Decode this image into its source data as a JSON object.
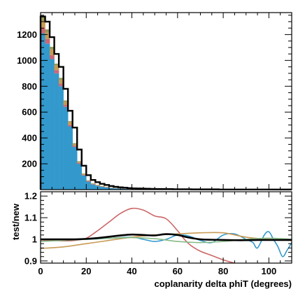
{
  "chart_data": [
    {
      "type": "bar",
      "subtype": "stacked-histogram",
      "title": "",
      "xlabel": "",
      "ylabel": "",
      "xlim": [
        0,
        110
      ],
      "ylim": [
        0,
        1370
      ],
      "x_ticks": [
        0,
        20,
        40,
        60,
        80,
        100
      ],
      "y_ticks": [
        200,
        400,
        600,
        800,
        1000,
        1200
      ],
      "y_tick_labels": [
        "200",
        "400",
        "600",
        "800",
        "1000",
        "1200"
      ],
      "bin_edges": [
        0,
        2,
        4,
        6,
        8,
        10,
        12,
        14,
        16,
        18,
        20,
        22,
        24,
        26,
        28,
        30,
        32,
        34,
        36,
        38,
        40,
        42,
        44,
        46,
        48,
        50,
        52,
        54,
        56,
        58,
        60,
        62,
        64,
        66,
        68,
        70,
        72,
        74,
        76,
        78,
        80,
        82,
        84,
        86,
        88,
        90,
        92,
        94,
        96,
        98,
        100,
        102,
        104,
        106,
        108,
        110
      ],
      "series": [
        {
          "name": "",
          "color": "#3399cc",
          "values": [
            1210,
            1130,
            1010,
            900,
            800,
            640,
            490,
            330,
            200,
            110,
            62,
            40,
            30,
            22,
            17,
            13,
            10,
            8,
            7,
            5,
            4,
            4,
            3,
            3,
            2,
            2,
            2,
            1,
            1,
            1,
            1,
            1,
            1,
            1,
            1,
            0,
            0,
            0,
            0,
            0,
            0,
            0,
            0,
            0,
            0,
            0,
            0,
            0,
            0,
            0,
            0,
            0,
            0,
            0,
            0
          ]
        },
        {
          "name": "",
          "color": "#cc6677",
          "values": [
            40,
            35,
            30,
            25,
            20,
            15,
            12,
            9,
            6,
            5,
            4,
            3,
            2,
            2,
            2,
            1,
            1,
            1,
            1,
            1,
            1,
            1,
            1,
            1,
            1,
            1,
            1,
            1,
            1,
            1,
            1,
            1,
            1,
            1,
            1,
            0,
            0,
            0,
            0,
            0,
            0,
            0,
            0,
            0,
            0,
            0,
            0,
            0,
            0,
            0,
            0,
            0,
            0,
            0,
            0
          ]
        },
        {
          "name": "",
          "color": "#c89a55",
          "values": [
            55,
            50,
            45,
            35,
            30,
            25,
            20,
            15,
            10,
            7,
            5,
            4,
            3,
            3,
            2,
            2,
            2,
            2,
            1,
            1,
            1,
            1,
            1,
            1,
            1,
            1,
            1,
            1,
            1,
            1,
            1,
            1,
            1,
            1,
            1,
            1,
            1,
            1,
            1,
            0,
            0,
            0,
            0,
            0,
            0,
            0,
            0,
            0,
            0,
            0,
            0,
            0,
            0,
            0,
            0
          ]
        },
        {
          "name": "",
          "color": "#999955",
          "values": [
            30,
            25,
            20,
            15,
            15,
            10,
            8,
            6,
            4,
            3,
            2,
            2,
            2,
            2,
            1,
            1,
            1,
            1,
            1,
            1,
            1,
            1,
            1,
            1,
            1,
            1,
            1,
            1,
            1,
            1,
            1,
            1,
            1,
            1,
            1,
            1,
            1,
            1,
            1,
            1,
            1,
            1,
            1,
            1,
            1,
            1,
            1,
            1,
            0,
            0,
            0,
            0,
            0,
            0,
            0
          ]
        }
      ],
      "total_outline": {
        "name": "",
        "color": "#000000",
        "values": [
          1340,
          1300,
          1180,
          1050,
          950,
          780,
          610,
          480,
          310,
          185,
          112,
          75,
          58,
          45,
          36,
          28,
          22,
          18,
          15,
          12,
          10,
          9,
          8,
          7,
          6,
          5,
          5,
          4,
          4,
          3,
          3,
          3,
          3,
          2,
          2,
          2,
          2,
          2,
          2,
          1,
          1,
          1,
          1,
          1,
          1,
          1,
          1,
          1,
          1,
          1,
          1,
          1,
          1,
          1,
          1
        ]
      }
    },
    {
      "type": "line",
      "title": "",
      "xlabel": "coplanarity delta phiT (degrees)",
      "ylabel": "test/new",
      "xlim": [
        0,
        110
      ],
      "ylim": [
        0.89,
        1.22
      ],
      "x_ticks": [
        0,
        20,
        40,
        60,
        80,
        100
      ],
      "x_tick_labels": [
        "0",
        "20",
        "40",
        "60",
        "80",
        "100"
      ],
      "y_ticks": [
        0.9,
        1,
        1.1,
        1.2
      ],
      "y_tick_labels": [
        "0.9",
        "1",
        "1.1",
        "1.2"
      ],
      "series": [
        {
          "name": "",
          "color": "#cc6666",
          "x": [
            0,
            5,
            10,
            15,
            20,
            25,
            30,
            35,
            40,
            45,
            50,
            55,
            60,
            63,
            66,
            70,
            75,
            80,
            85,
            90,
            95
          ],
          "y": [
            0.997,
            0.995,
            0.993,
            0.995,
            1.005,
            1.04,
            1.08,
            1.12,
            1.143,
            1.135,
            1.108,
            1.095,
            1.04,
            1.0,
            0.97,
            0.945,
            0.925,
            0.905,
            0.89,
            0.878,
            0.862
          ]
        },
        {
          "name": "",
          "color": "#3399cc",
          "x": [
            0,
            10,
            20,
            30,
            40,
            45,
            50,
            55,
            60,
            65,
            70,
            75,
            80,
            85,
            90,
            93,
            95,
            98,
            100,
            102,
            104,
            106,
            108,
            110
          ],
          "y": [
            1.0,
            1.0,
            1.0,
            1.005,
            1.01,
            1.0,
            0.99,
            1.0,
            1.02,
            1.015,
            0.995,
            0.985,
            1.02,
            1.025,
            1.0,
            0.985,
            0.96,
            1.02,
            1.035,
            1.0,
            0.965,
            0.92,
            0.95,
            0.985
          ]
        },
        {
          "name": "",
          "color": "#c89a55",
          "x": [
            0,
            10,
            20,
            30,
            40,
            50,
            60,
            70,
            80,
            90,
            100,
            110
          ],
          "y": [
            0.958,
            0.965,
            0.98,
            0.995,
            1.01,
            1.02,
            1.025,
            1.03,
            1.03,
            1.01,
            1.0,
            0.995
          ]
        },
        {
          "name": "",
          "color": "#88bb88",
          "x": [
            0,
            10,
            20,
            30,
            40,
            50,
            60,
            70,
            80,
            90,
            100,
            110
          ],
          "y": [
            0.99,
            0.995,
            1.0,
            1.005,
            1.008,
            1.003,
            0.99,
            0.985,
            0.99,
            1.0,
            1.005,
            1.0
          ]
        },
        {
          "name": "",
          "color": "#000000",
          "x": [
            0,
            5,
            10,
            15,
            20,
            25,
            30,
            35,
            40,
            45,
            50,
            55,
            60,
            65,
            70,
            75,
            80,
            85,
            90,
            95,
            100,
            105,
            110
          ],
          "y": [
            1.0,
            1.0,
            1.0,
            1.0,
            1.002,
            1.006,
            1.012,
            1.018,
            1.022,
            1.02,
            1.018,
            1.024,
            1.02,
            1.008,
            1.0,
            0.998,
            0.997,
            0.996,
            0.996,
            0.997,
            0.997,
            0.997,
            0.997
          ]
        }
      ]
    }
  ]
}
